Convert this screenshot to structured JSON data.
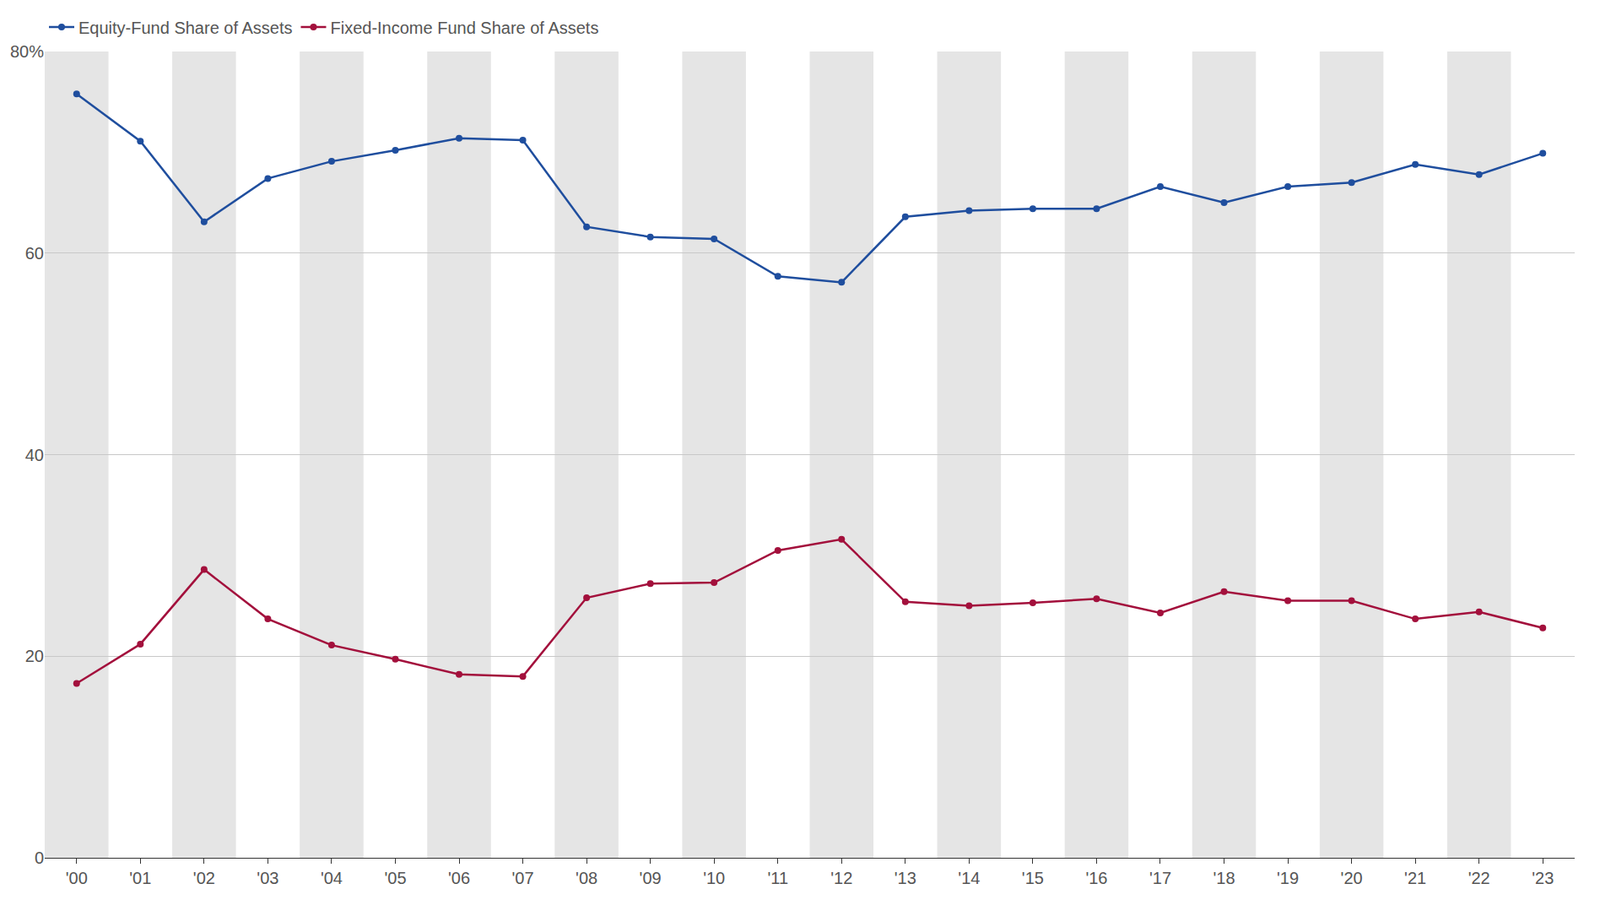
{
  "chart_data": {
    "type": "line",
    "categories": [
      "'00",
      "'01",
      "'02",
      "'03",
      "'04",
      "'05",
      "'06",
      "'07",
      "'08",
      "'09",
      "'10",
      "'11",
      "'12",
      "'13",
      "'14",
      "'15",
      "'16",
      "'17",
      "'18",
      "'19",
      "'20",
      "'21",
      "'22",
      "'23"
    ],
    "series": [
      {
        "name": "Equity-Fund Share of Assets",
        "color": "#1f4e9e",
        "marker": "circle",
        "values": [
          75.8,
          71.1,
          63.1,
          67.4,
          69.1,
          70.2,
          71.4,
          71.2,
          62.6,
          61.6,
          61.4,
          57.7,
          57.1,
          63.6,
          64.2,
          64.4,
          64.4,
          66.6,
          65.0,
          66.6,
          67.0,
          68.8,
          67.8,
          69.9
        ]
      },
      {
        "name": "Fixed-Income Fund Share of Assets",
        "color": "#a3103c",
        "marker": "circle",
        "values": [
          17.3,
          21.2,
          28.6,
          23.7,
          21.1,
          19.7,
          18.2,
          18.0,
          25.8,
          27.2,
          27.3,
          30.5,
          31.6,
          25.4,
          25.0,
          25.3,
          25.7,
          24.3,
          26.4,
          25.5,
          25.5,
          23.7,
          24.4,
          22.8
        ]
      }
    ],
    "ylim": [
      0,
      80
    ],
    "yticks": [
      0,
      20,
      40,
      60,
      {
        "value": 80,
        "label": "80%"
      }
    ],
    "grid": true,
    "legend": "top left"
  }
}
